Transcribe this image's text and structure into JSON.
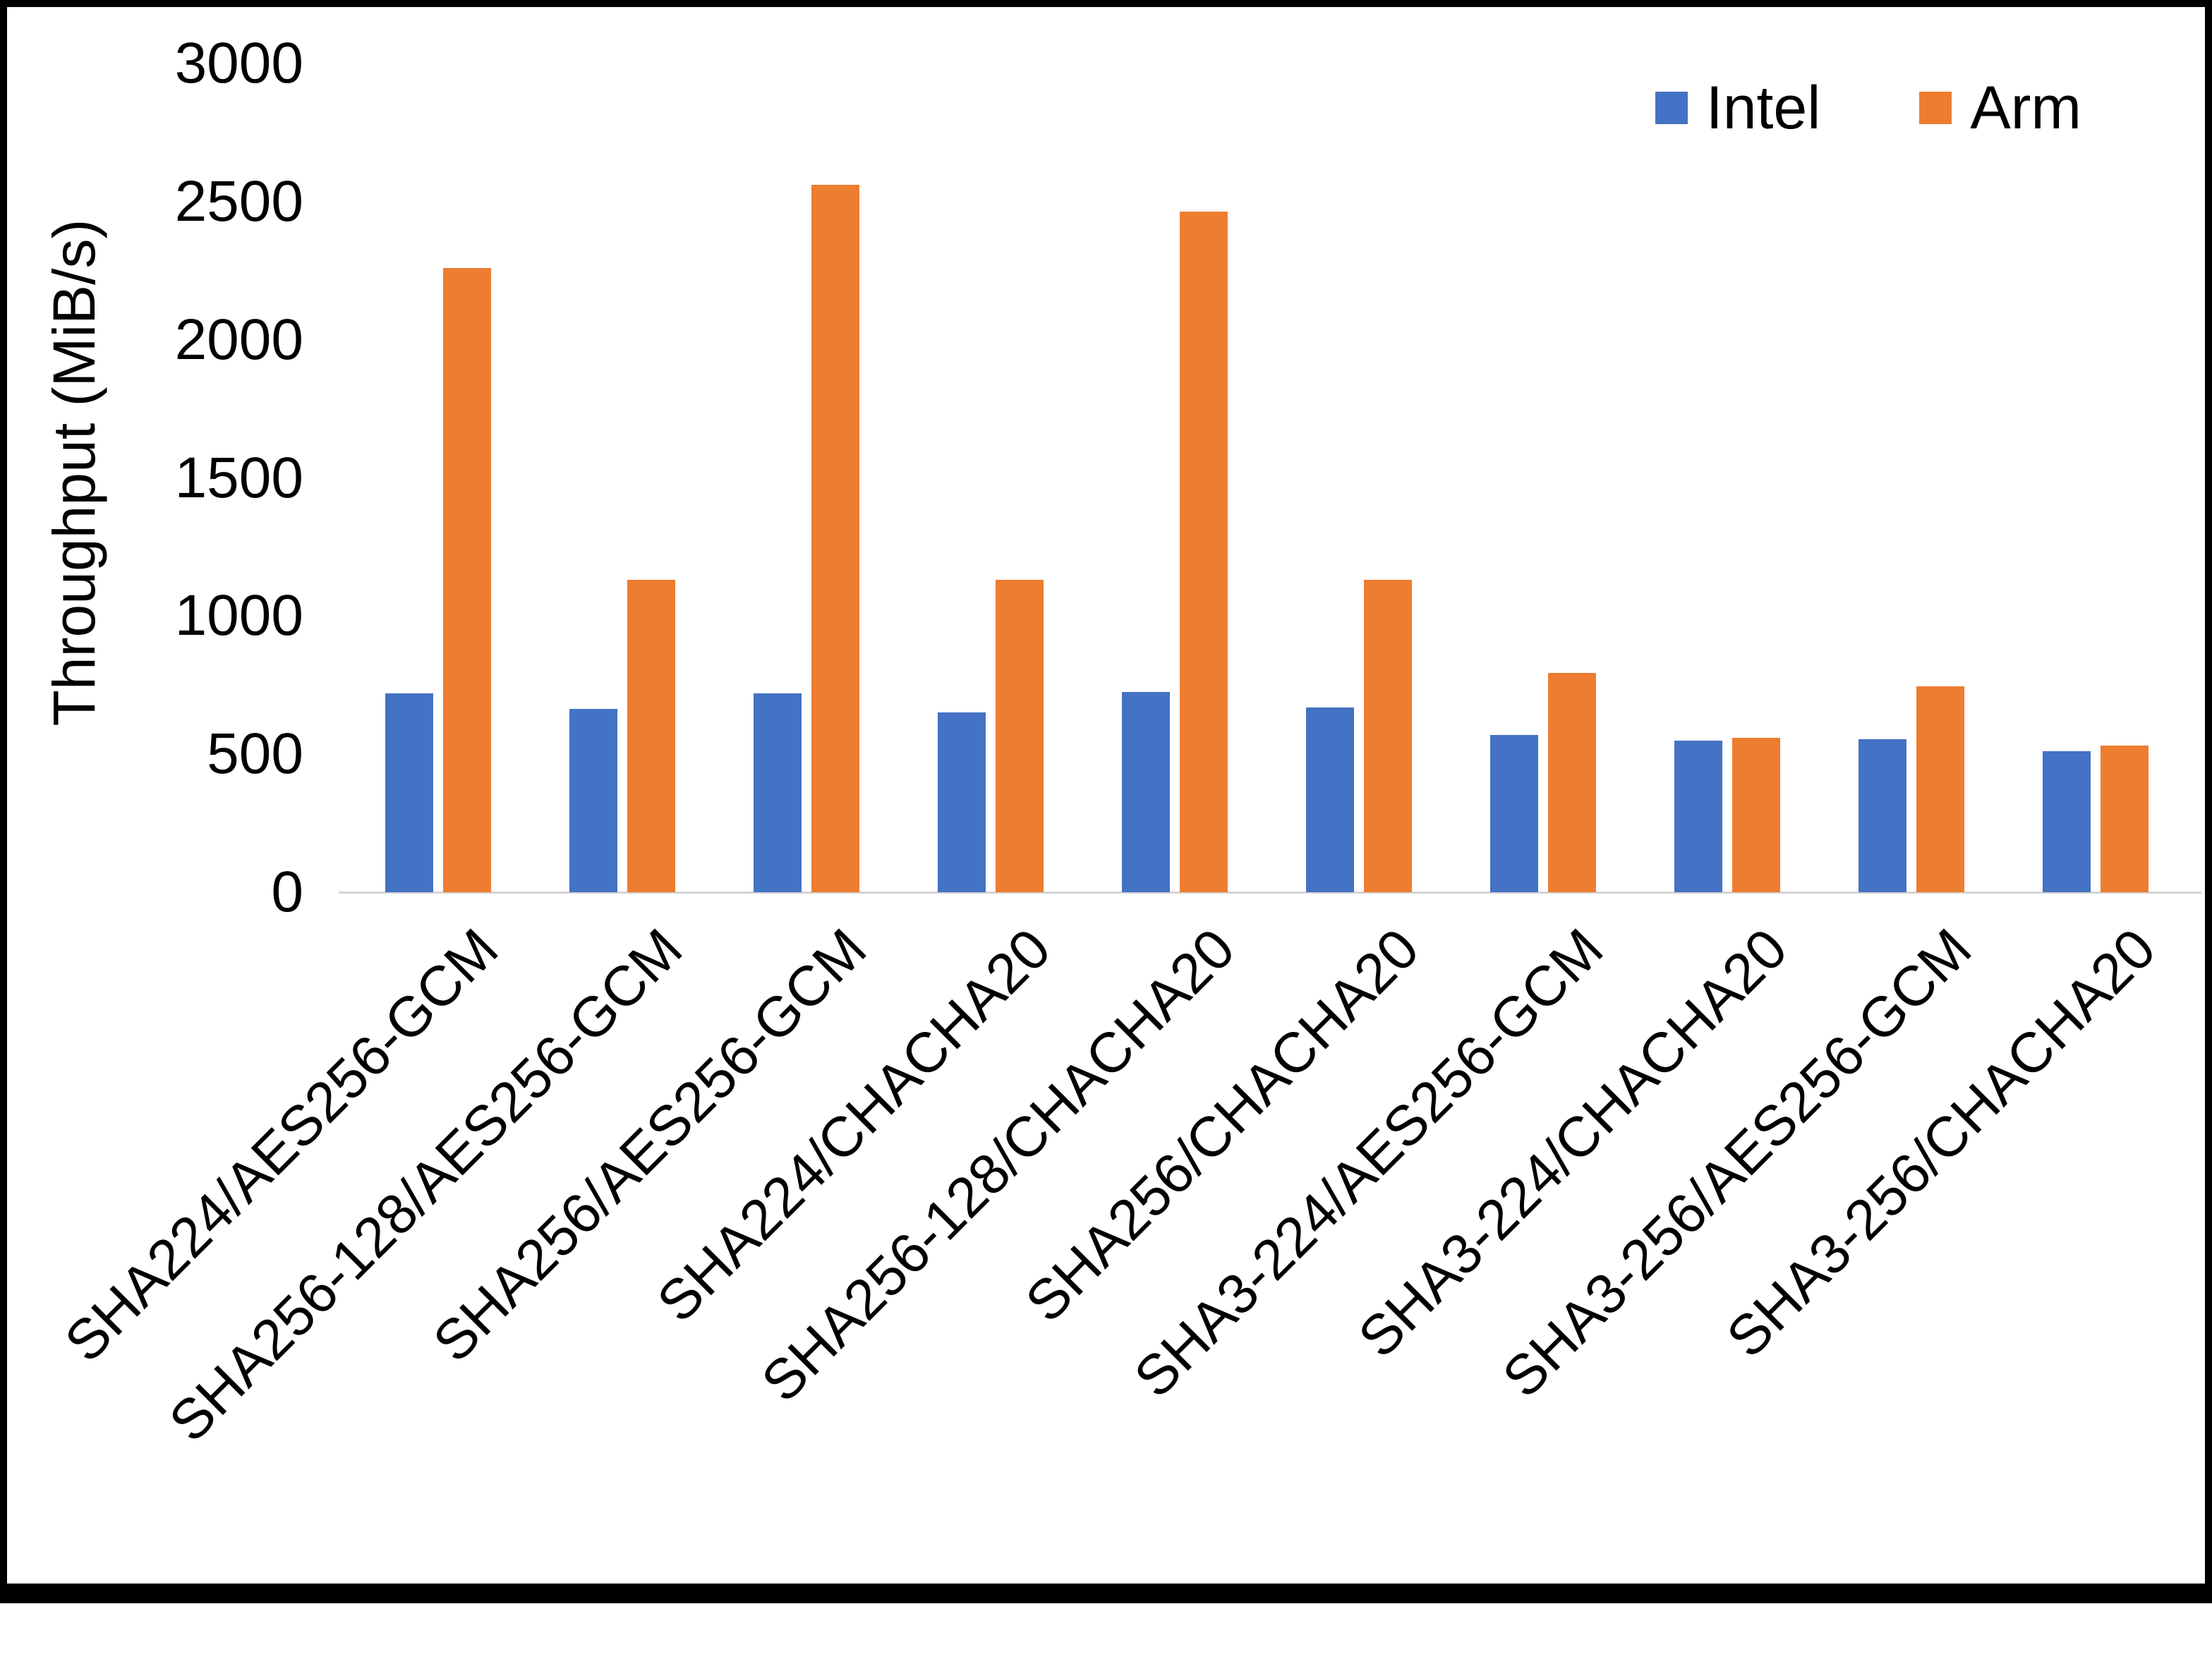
{
  "chart_data": {
    "type": "bar",
    "title": "",
    "xlabel": "",
    "ylabel": "Throughput (MiB/s)",
    "ylim": [
      0,
      3000
    ],
    "yticks": [
      0,
      500,
      1000,
      1500,
      2000,
      2500,
      3000
    ],
    "grid": false,
    "legend_position": "top-right",
    "categories": [
      "SHA224/AES256-GCM",
      "SHA256-128/AES256-GCM",
      "SHA256/AES256-GCM",
      "SHA224/CHACHA20",
      "SHA256-128/CHACHA20",
      "SHA256/CHACHA20",
      "SHA3-224/AES256-GCM",
      "SHA3-224/CHACHA20",
      "SHA3-256/AES256-GCM",
      "SHA3-256/CHACHA20"
    ],
    "series": [
      {
        "name": "Intel",
        "color": "#4472C4",
        "values": [
          720,
          665,
          720,
          650,
          725,
          670,
          570,
          550,
          555,
          510
        ]
      },
      {
        "name": "Arm",
        "color": "#ED7D31",
        "values": [
          2260,
          1130,
          2560,
          1130,
          2465,
          1130,
          795,
          560,
          745,
          530
        ]
      }
    ]
  }
}
